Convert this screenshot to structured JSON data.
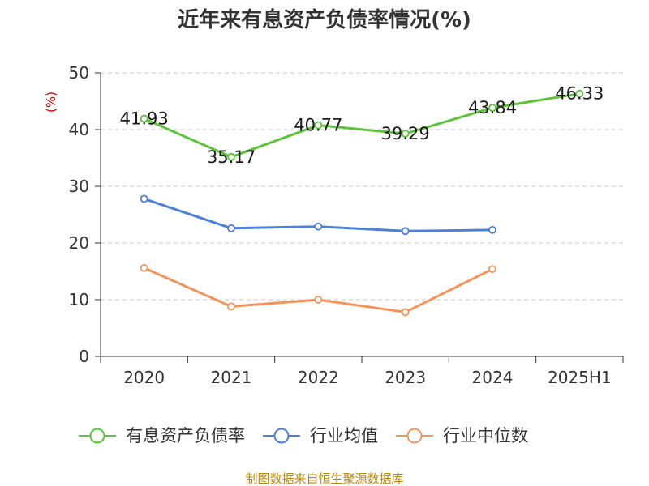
{
  "chart_data": {
    "type": "line",
    "title": "近年来有息资产负债率情况(%)",
    "ylabel": "(%)",
    "xlabel": "",
    "categories": [
      "2020",
      "2021",
      "2022",
      "2023",
      "2024",
      "2025H1"
    ],
    "ylim": [
      0,
      50
    ],
    "yticks": [
      "0",
      "10",
      "20",
      "30",
      "40",
      "50"
    ],
    "grid": true,
    "legend_position": "bottom",
    "series": [
      {
        "name": "有息资产负债率",
        "color": "#5cc33a",
        "values": [
          41.93,
          35.17,
          40.77,
          39.29,
          43.84,
          46.33
        ],
        "labels": [
          "41.93",
          "35.17",
          "40.77",
          "39.29",
          "43.84",
          "46.33"
        ]
      },
      {
        "name": "行业均值",
        "color": "#4e7fdb",
        "values": [
          27.8,
          22.6,
          22.9,
          22.1,
          22.3,
          null
        ]
      },
      {
        "name": "行业中位数",
        "color": "#f6935a",
        "values": [
          15.6,
          8.8,
          10.0,
          7.8,
          15.4,
          null
        ]
      }
    ]
  },
  "source": "制图数据来自恒生聚源数据库"
}
